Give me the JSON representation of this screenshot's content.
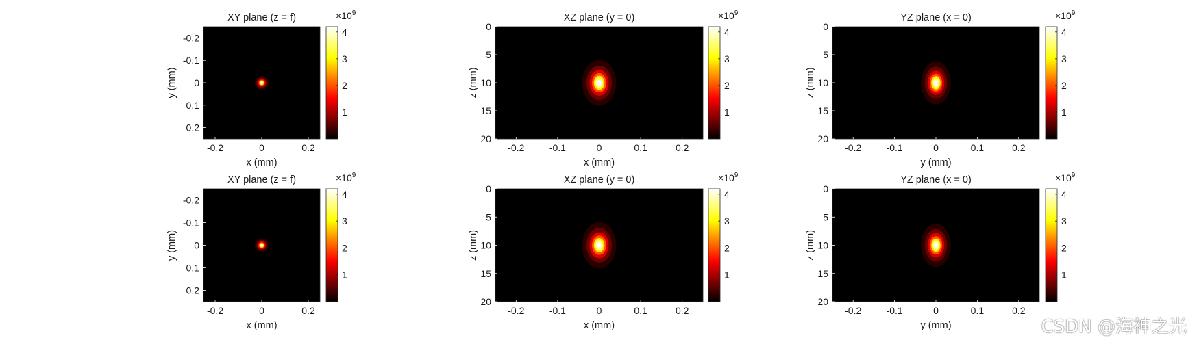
{
  "watermark": "CSDN @海神之光",
  "chart_data": [
    {
      "type": "heatmap",
      "title": "XY plane (z = f)",
      "xlabel": "x (mm)",
      "ylabel": "y (mm)",
      "xlim": [
        -0.25,
        0.25
      ],
      "ylim": [
        -0.25,
        0.25
      ],
      "y_reversed": true,
      "xticks": [
        -0.2,
        0,
        0.2
      ],
      "xtick_labels": [
        "-0.2",
        "0",
        "0.2"
      ],
      "yticks": [
        -0.2,
        -0.1,
        0,
        0.1,
        0.2
      ],
      "ytick_labels": [
        "-0.2",
        "-0.1",
        "0",
        "0.1",
        "0.2"
      ],
      "peak": {
        "x": 0,
        "y": 0,
        "sx": 0.006,
        "sy": 0.006
      },
      "colorbar": {
        "colormap": "hot",
        "clim": [
          0,
          4.2
        ],
        "ticks": [
          1,
          2,
          3,
          4
        ],
        "tick_labels": [
          "1",
          "2",
          "3",
          "4"
        ],
        "exponent_label": "×10",
        "exponent": "9"
      }
    },
    {
      "type": "heatmap",
      "title": "XZ plane (y = 0)",
      "xlabel": "x (mm)",
      "ylabel": "z (mm)",
      "xlim": [
        -0.25,
        0.25
      ],
      "ylim": [
        0,
        20
      ],
      "y_reversed": true,
      "xticks": [
        -0.2,
        -0.1,
        0,
        0.1,
        0.2
      ],
      "xtick_labels": [
        "-0.2",
        "-0.1",
        "0",
        "0.1",
        "0.2"
      ],
      "yticks": [
        0,
        5,
        10,
        15,
        20
      ],
      "ytick_labels": [
        "0",
        "5",
        "10",
        "15",
        "20"
      ],
      "peak": {
        "x": 0,
        "y": 10,
        "sx": 0.008,
        "sy": 0.8
      },
      "colorbar": {
        "colormap": "hot",
        "clim": [
          0,
          4.2
        ],
        "ticks": [
          1,
          2,
          3,
          4
        ],
        "tick_labels": [
          "1",
          "2",
          "3",
          "4"
        ],
        "exponent_label": "×10",
        "exponent": "9"
      }
    },
    {
      "type": "heatmap",
      "title": "YZ plane (x = 0)",
      "xlabel": "y (mm)",
      "ylabel": "z (mm)",
      "xlim": [
        -0.25,
        0.25
      ],
      "ylim": [
        0,
        20
      ],
      "y_reversed": true,
      "xticks": [
        -0.2,
        -0.1,
        0,
        0.1,
        0.2
      ],
      "xtick_labels": [
        "-0.2",
        "-0.1",
        "0",
        "0.1",
        "0.2"
      ],
      "yticks": [
        0,
        5,
        10,
        15,
        20
      ],
      "ytick_labels": [
        "0",
        "5",
        "10",
        "15",
        "20"
      ],
      "peak": {
        "x": 0,
        "y": 10,
        "sx": 0.007,
        "sy": 0.75
      },
      "colorbar": {
        "colormap": "hot",
        "clim": [
          0,
          4.2
        ],
        "ticks": [
          1,
          2,
          3,
          4
        ],
        "tick_labels": [
          "1",
          "2",
          "3",
          "4"
        ],
        "exponent_label": "×10",
        "exponent": "9"
      }
    },
    {
      "type": "heatmap",
      "title": "XY plane (z = f)",
      "xlabel": "x (mm)",
      "ylabel": "y (mm)",
      "xlim": [
        -0.25,
        0.25
      ],
      "ylim": [
        -0.25,
        0.25
      ],
      "y_reversed": true,
      "xticks": [
        -0.2,
        0,
        0.2
      ],
      "xtick_labels": [
        "-0.2",
        "0",
        "0.2"
      ],
      "yticks": [
        -0.2,
        -0.1,
        0,
        0.1,
        0.2
      ],
      "ytick_labels": [
        "-0.2",
        "-0.1",
        "0",
        "0.1",
        "0.2"
      ],
      "peak": {
        "x": 0,
        "y": 0,
        "sx": 0.006,
        "sy": 0.006
      },
      "colorbar": {
        "colormap": "hot",
        "clim": [
          0,
          4.2
        ],
        "ticks": [
          1,
          2,
          3,
          4
        ],
        "tick_labels": [
          "1",
          "2",
          "3",
          "4"
        ],
        "exponent_label": "×10",
        "exponent": "9"
      }
    },
    {
      "type": "heatmap",
      "title": "XZ plane (y = 0)",
      "xlabel": "x (mm)",
      "ylabel": "z (mm)",
      "xlim": [
        -0.25,
        0.25
      ],
      "ylim": [
        0,
        20
      ],
      "y_reversed": true,
      "xticks": [
        -0.2,
        -0.1,
        0,
        0.1,
        0.2
      ],
      "xtick_labels": [
        "-0.2",
        "-0.1",
        "0",
        "0.1",
        "0.2"
      ],
      "yticks": [
        0,
        5,
        10,
        15,
        20
      ],
      "ytick_labels": [
        "0",
        "5",
        "10",
        "15",
        "20"
      ],
      "peak": {
        "x": 0,
        "y": 10,
        "sx": 0.008,
        "sy": 0.8
      },
      "colorbar": {
        "colormap": "hot",
        "clim": [
          0,
          4.2
        ],
        "ticks": [
          1,
          2,
          3,
          4
        ],
        "tick_labels": [
          "1",
          "2",
          "3",
          "4"
        ],
        "exponent_label": "×10",
        "exponent": "9"
      }
    },
    {
      "type": "heatmap",
      "title": "YZ plane (x = 0)",
      "xlabel": "y (mm)",
      "ylabel": "z (mm)",
      "xlim": [
        -0.25,
        0.25
      ],
      "ylim": [
        0,
        20
      ],
      "y_reversed": true,
      "xticks": [
        -0.2,
        -0.1,
        0,
        0.1,
        0.2
      ],
      "xtick_labels": [
        "-0.2",
        "-0.1",
        "0",
        "0.1",
        "0.2"
      ],
      "yticks": [
        0,
        5,
        10,
        15,
        20
      ],
      "ytick_labels": [
        "0",
        "5",
        "10",
        "15",
        "20"
      ],
      "peak": {
        "x": 0,
        "y": 10,
        "sx": 0.007,
        "sy": 0.75
      },
      "colorbar": {
        "colormap": "hot",
        "clim": [
          0,
          4.2
        ],
        "ticks": [
          1,
          2,
          3,
          4
        ],
        "tick_labels": [
          "1",
          "2",
          "3",
          "4"
        ],
        "exponent_label": "×10",
        "exponent": "9"
      }
    }
  ]
}
